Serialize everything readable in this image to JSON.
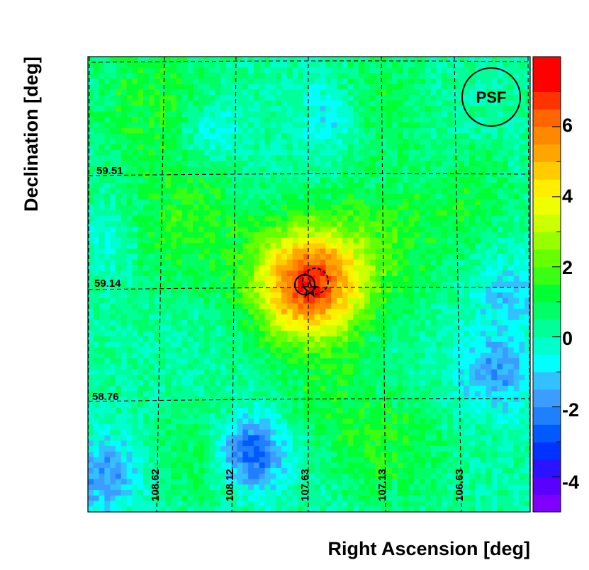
{
  "chart_data": {
    "type": "heatmap",
    "title": "",
    "xlabel": "Right Ascension [deg]",
    "ylabel": "Declination [deg]",
    "x_reversed": true,
    "xlim": [
      108.92,
      106.38
    ],
    "ylim": [
      58.5,
      59.88
    ],
    "x_grid_values": [
      "108.62",
      "108.12",
      "107.63",
      "107.13",
      "106.63"
    ],
    "y_grid_values": [
      "59.51",
      "59.14",
      "58.76"
    ],
    "colorbar": {
      "range": [
        -5,
        8
      ],
      "ticks": [
        "6",
        "4",
        "2",
        "0",
        "-2",
        "-4"
      ],
      "tick_values": [
        6,
        4,
        2,
        0,
        -2,
        -4
      ],
      "band_colors": [
        "#7f00ff",
        "#5a00ff",
        "#2a14ff",
        "#0033ff",
        "#005aff",
        "#1f7fff",
        "#3c9cff",
        "#33c0ff",
        "#00ffff",
        "#00ffcc",
        "#00ff99",
        "#00ff66",
        "#00ff33",
        "#39ff14",
        "#66ff00",
        "#99ff00",
        "#ccff00",
        "#eeff00",
        "#ffee00",
        "#ffcc00",
        "#ffa500",
        "#ff8800",
        "#ff6600",
        "#ff3300",
        "#ff0000",
        "#ff0000"
      ]
    },
    "source": {
      "ra": 107.63,
      "dec": 59.14,
      "peak_significance": 7.0
    },
    "psf_label": "PSF"
  }
}
